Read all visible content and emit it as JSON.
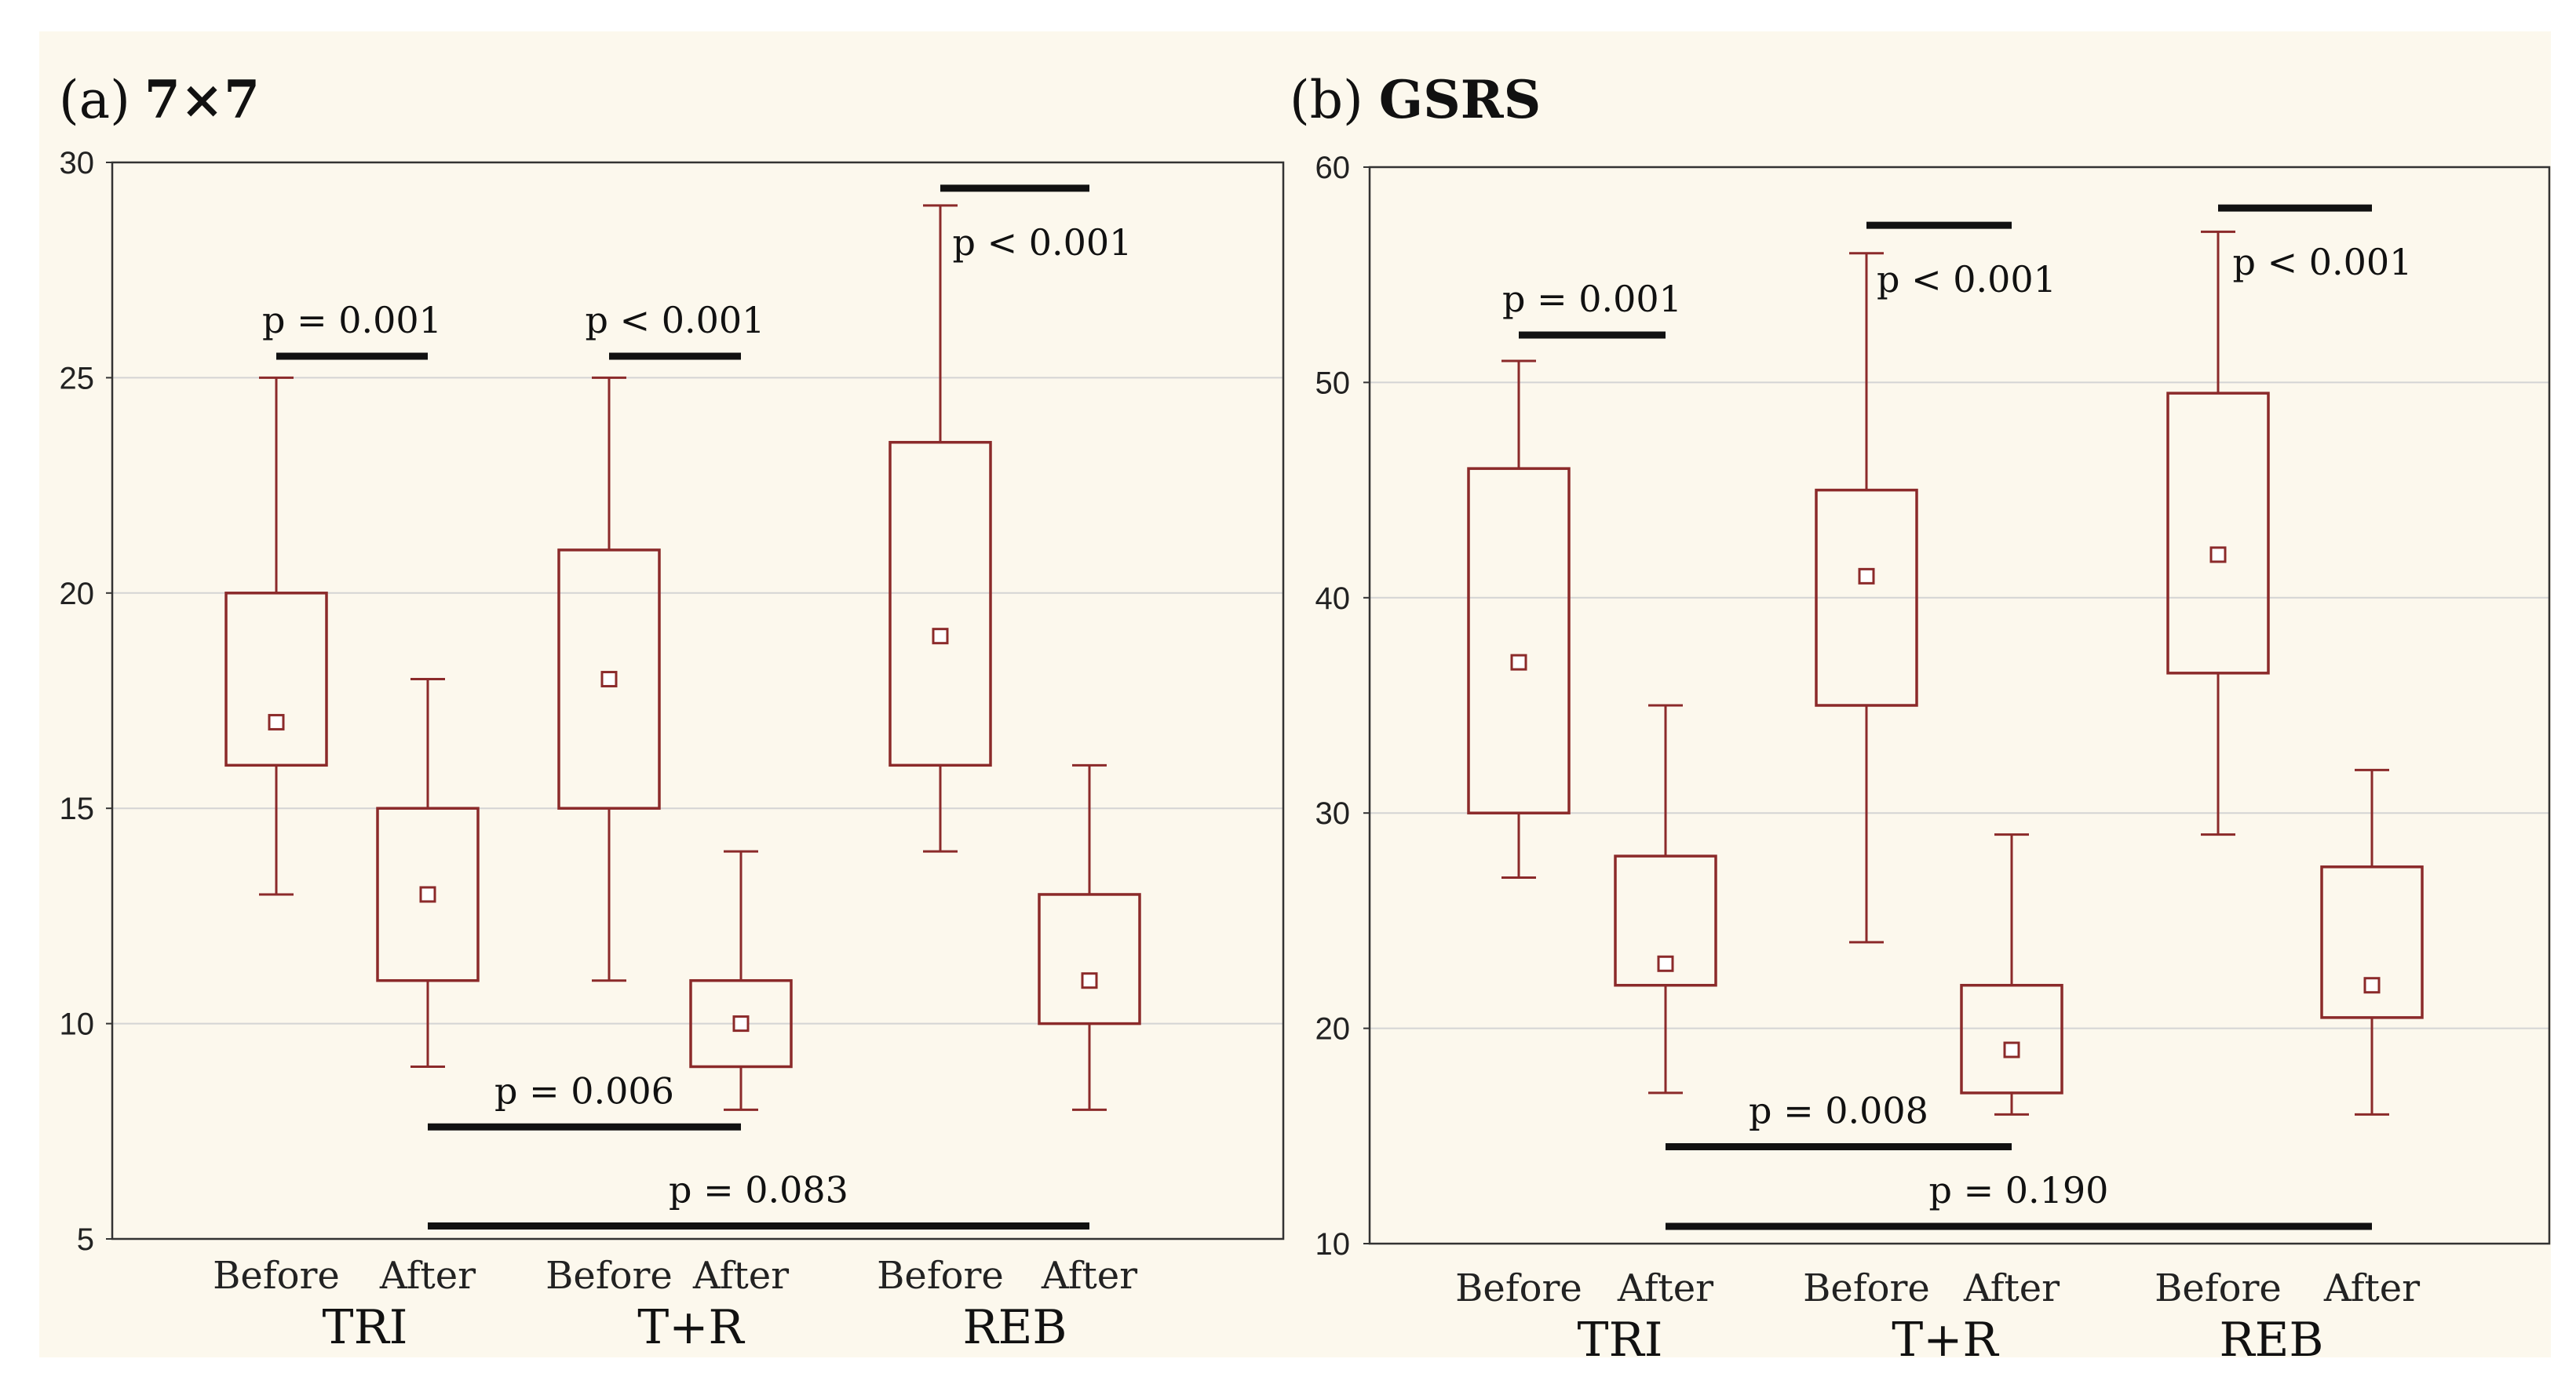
{
  "chart_data": [
    {
      "type": "boxplot",
      "label": "(a)",
      "title": "7×7",
      "ylim": [
        5,
        30
      ],
      "yticks": [
        5,
        10,
        15,
        20,
        25,
        30
      ],
      "groups": [
        "TRI",
        "T+R",
        "REB"
      ],
      "categories": [
        "Before",
        "After",
        "Before",
        "After",
        "Before",
        "After"
      ],
      "boxes": [
        {
          "group": "TRI",
          "label": "Before",
          "median": 17,
          "q1": 16,
          "q3": 20,
          "min": 13,
          "max": 25
        },
        {
          "group": "TRI",
          "label": "After",
          "median": 13,
          "q1": 11,
          "q3": 15,
          "min": 9,
          "max": 18
        },
        {
          "group": "T+R",
          "label": "Before",
          "median": 18,
          "q1": 15,
          "q3": 21,
          "min": 11,
          "max": 25
        },
        {
          "group": "T+R",
          "label": "After",
          "median": 10,
          "q1": 9,
          "q3": 11,
          "min": 8,
          "max": 14
        },
        {
          "group": "REB",
          "label": "Before",
          "median": 19,
          "q1": 16,
          "q3": 23.5,
          "min": 14,
          "max": 29
        },
        {
          "group": "REB",
          "label": "After",
          "median": 11,
          "q1": 10,
          "q3": 13,
          "min": 8,
          "max": 16
        }
      ],
      "annotations": [
        {
          "text": "p = 0.001",
          "from": 0,
          "to": 1,
          "y": 25.5,
          "pos": "above"
        },
        {
          "text": "p < 0.001",
          "from": 2,
          "to": 3,
          "y": 25.5,
          "pos": "above"
        },
        {
          "text": "p < 0.001",
          "from": 4,
          "to": 5,
          "y": 29.4,
          "pos": "below"
        },
        {
          "text": "p = 0.006",
          "from": 1,
          "to": 3,
          "y": 7.6,
          "pos": "above"
        },
        {
          "text": "p = 0.083",
          "from": 1,
          "to": 5,
          "y": 5.3,
          "pos": "above"
        }
      ]
    },
    {
      "type": "boxplot",
      "label": "(b)",
      "title": "GSRS",
      "ylim": [
        10,
        60
      ],
      "yticks": [
        10,
        20,
        30,
        40,
        50,
        60
      ],
      "groups": [
        "TRI",
        "T+R",
        "REB"
      ],
      "categories": [
        "Before",
        "After",
        "Before",
        "After",
        "Before",
        "After"
      ],
      "boxes": [
        {
          "group": "TRI",
          "label": "Before",
          "median": 37,
          "q1": 30,
          "q3": 46,
          "min": 27,
          "max": 51
        },
        {
          "group": "TRI",
          "label": "After",
          "median": 23,
          "q1": 22,
          "q3": 28,
          "min": 17,
          "max": 35
        },
        {
          "group": "T+R",
          "label": "Before",
          "median": 41,
          "q1": 35,
          "q3": 45,
          "min": 24,
          "max": 56
        },
        {
          "group": "T+R",
          "label": "After",
          "median": 19,
          "q1": 17,
          "q3": 22,
          "min": 16,
          "max": 29
        },
        {
          "group": "REB",
          "label": "Before",
          "median": 42,
          "q1": 36.5,
          "q3": 49.5,
          "min": 29,
          "max": 57
        },
        {
          "group": "REB",
          "label": "After",
          "median": 22,
          "q1": 20.5,
          "q3": 27.5,
          "min": 16,
          "max": 32
        }
      ],
      "annotations": [
        {
          "text": "p = 0.001",
          "from": 0,
          "to": 1,
          "y": 52.2,
          "pos": "above"
        },
        {
          "text": "p < 0.001",
          "from": 2,
          "to": 3,
          "y": 57.3,
          "pos": "below"
        },
        {
          "text": "p < 0.001",
          "from": 4,
          "to": 5,
          "y": 58.1,
          "pos": "below"
        },
        {
          "text": "p = 0.008",
          "from": 1,
          "to": 3,
          "y": 14.5,
          "pos": "above"
        },
        {
          "text": "p = 0.190",
          "from": 1,
          "to": 5,
          "y": 10.8,
          "pos": "above"
        }
      ]
    }
  ],
  "colors": {
    "box": "#8b2a2a",
    "bar": "#111111",
    "grid": "#d4d4d4",
    "panel_bg": "#fcf8ed"
  }
}
